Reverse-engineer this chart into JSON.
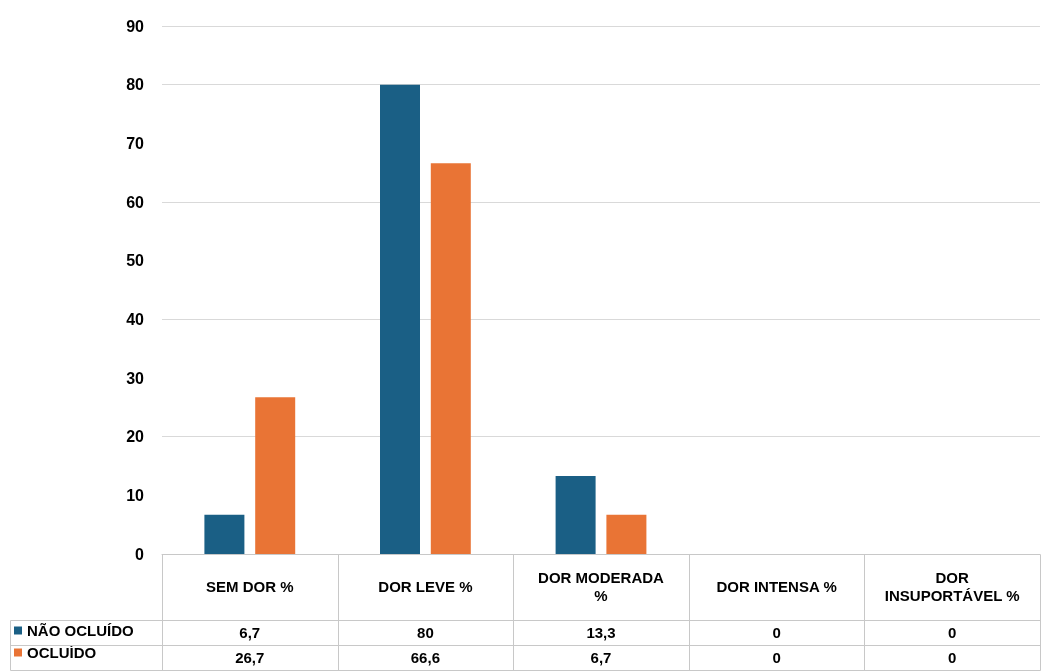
{
  "chart_data": {
    "type": "bar",
    "categories": [
      "SEM DOR %",
      "DOR LEVE %",
      "DOR MODERADA %",
      "DOR INTENSA %",
      "DOR INSUPORTÁVEL %"
    ],
    "series": [
      {
        "name": "NÃO OCLUÍDO",
        "color": "#1a5f85",
        "values": [
          6.7,
          80,
          13.3,
          0,
          0
        ],
        "value_labels": [
          "6,7",
          "80",
          "13,3",
          "0",
          "0"
        ]
      },
      {
        "name": "OCLUÍDO",
        "color": "#e97435",
        "values": [
          26.7,
          66.6,
          6.7,
          0,
          0
        ],
        "value_labels": [
          "26,7",
          "66,6",
          "6,7",
          "0",
          "0"
        ]
      }
    ],
    "ylim": [
      0,
      90
    ],
    "yticks": [
      0,
      10,
      20,
      30,
      40,
      50,
      60,
      70,
      80,
      90
    ],
    "grid": "y",
    "legend": "bottom left"
  }
}
